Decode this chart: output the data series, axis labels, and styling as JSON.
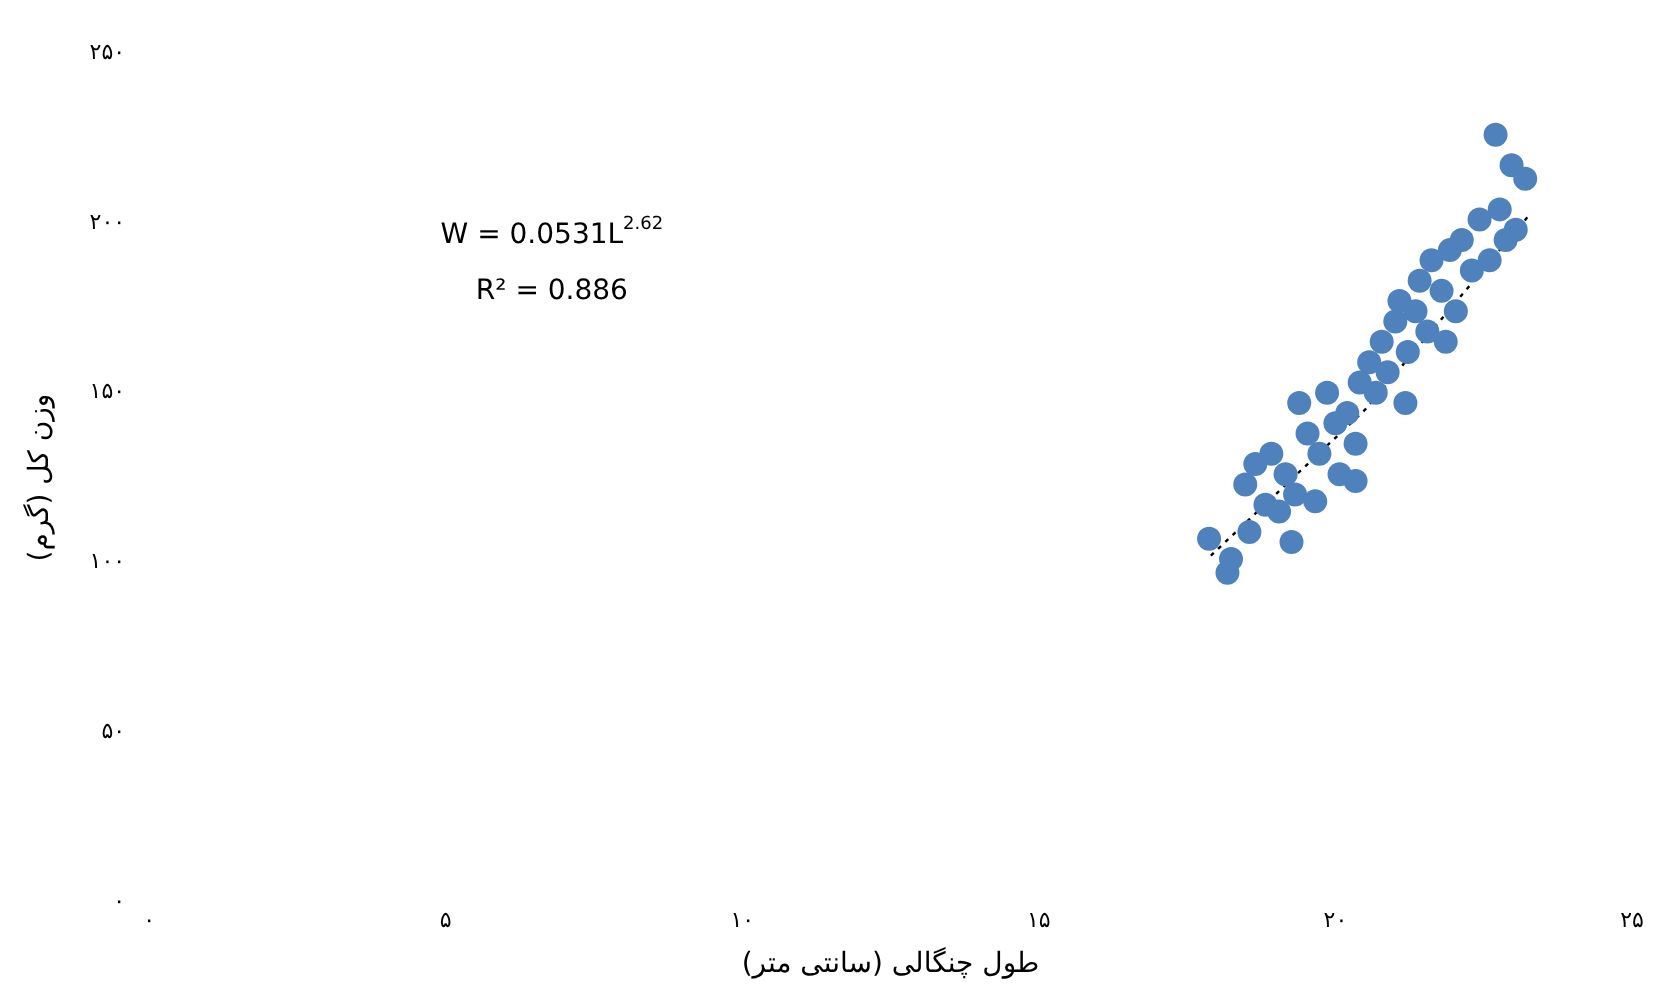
{
  "chart_data": {
    "type": "scatter",
    "xlabel": "طول چنگالی (سانتی متر)",
    "ylabel": "وزن کل (گرم)",
    "annotations": [
      "W = 0.0531L$^{2.62}$",
      "R² = 0.886"
    ],
    "xlim": [
      0,
      25
    ],
    "xticks": [
      {
        "value": 0,
        "label": "۰"
      },
      {
        "value": 5,
        "label": "۵"
      },
      {
        "value": 10,
        "label": "۱۰"
      },
      {
        "value": 15,
        "label": "۱۵"
      },
      {
        "value": 20,
        "label": "۲۰"
      },
      {
        "value": 25,
        "label": "۲۵"
      }
    ],
    "ylim": [
      0,
      250
    ],
    "yticks": [
      {
        "value": 0,
        "label": "۰"
      },
      {
        "value": 50,
        "label": "۵۰"
      },
      {
        "value": 100,
        "label": "۱۰۰"
      },
      {
        "value": 150,
        "label": "۱۵۰"
      },
      {
        "value": 200,
        "label": "۲۰۰"
      },
      {
        "value": 250,
        "label": "۲۵۰"
      }
    ],
    "grid": false,
    "legend": false,
    "marker": "circle",
    "series": [
      {
        "color": "#4f81bd",
        "x": [
          17.87,
          18.18,
          18.24,
          18.48,
          18.65,
          18.82,
          18.92,
          19.05,
          19.16,
          19.32,
          19.39,
          19.53,
          19.66,
          19.73,
          19.86,
          20.0,
          20.07,
          20.2,
          20.34,
          20.41,
          20.57,
          20.68,
          20.78,
          20.88,
          21.01,
          21.08,
          21.22,
          21.35,
          21.42,
          21.55,
          21.62,
          21.79,
          21.93,
          22.03,
          22.13,
          22.3,
          22.43,
          22.6,
          22.77,
          22.87,
          23.04,
          22.7,
          22.97,
          23.2,
          18.55,
          19.26,
          20.34,
          21.18,
          21.86
        ],
        "values": [
          107,
          97,
          101,
          123,
          129,
          117,
          132,
          115,
          126,
          120,
          147,
          138,
          118,
          132,
          150,
          141,
          126,
          144,
          135,
          153,
          159,
          150,
          165,
          156,
          171,
          177,
          162,
          174,
          183,
          168,
          189,
          180,
          192,
          174,
          195,
          186,
          201,
          189,
          204,
          195,
          198,
          226,
          217,
          213,
          109,
          106,
          124,
          147,
          165
        ]
      },
      {
        "type": "line",
        "color": "#000000",
        "line_style": "dotted",
        "marker": "none",
        "x": [
          17.9,
          20.5,
          23.3
        ],
        "values": [
          102,
          145,
          203
        ]
      }
    ]
  }
}
